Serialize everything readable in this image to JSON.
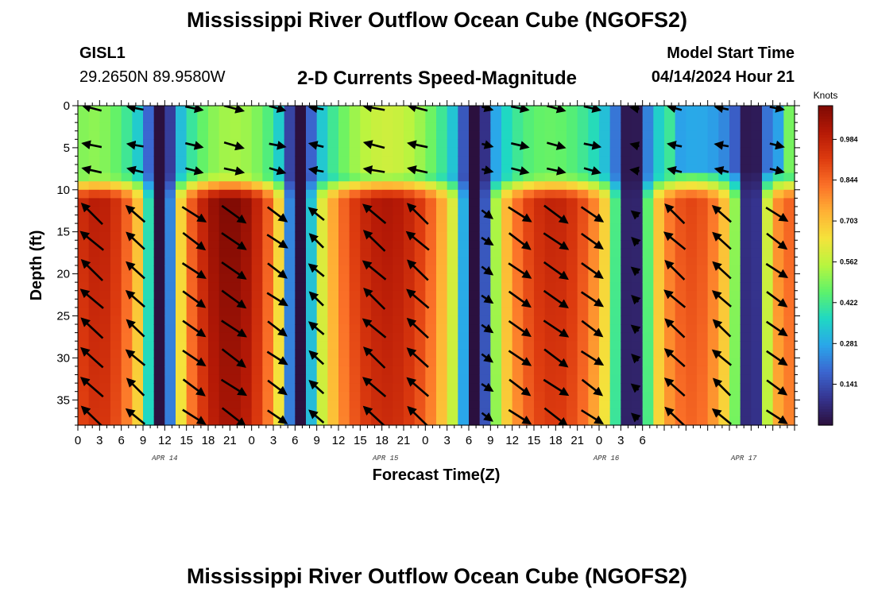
{
  "header": {
    "title": "Mississippi River Outflow Ocean Cube (NGOFS2)",
    "station_id": "GISL1",
    "station_coords": "29.2650N  89.9580W",
    "subtitle": "2-D Currents Speed-Magnitude",
    "model_start_label": "Model Start Time",
    "model_start_value": "04/14/2024 Hour 21"
  },
  "footer": {
    "title": "Mississippi River Outflow Ocean Cube (NGOFS2)"
  },
  "chart_data": {
    "type": "heatmap",
    "xlabel": "Forecast Time(Z)",
    "ylabel": "Depth (ft)",
    "x_range_hours": [
      0,
      99
    ],
    "y_range_ft": [
      0,
      38
    ],
    "x_tick_labels": [
      "0",
      "3",
      "6",
      "9",
      "12",
      "15",
      "18",
      "21",
      "0",
      "3",
      "6",
      "9",
      "12",
      "15",
      "18",
      "21",
      "0",
      "3",
      "6",
      "9",
      "12",
      "15",
      "18",
      "21",
      "0",
      "3",
      "6"
    ],
    "y_ticks": [
      0,
      5,
      10,
      15,
      20,
      25,
      30,
      35
    ],
    "date_labels": [
      {
        "label": "APR 14",
        "hour": 12
      },
      {
        "label": "APR 15",
        "hour": 42.5
      },
      {
        "label": "APR 16",
        "hour": 73
      },
      {
        "label": "APR 17",
        "hour": 92
      }
    ],
    "colorbar": {
      "title": "Knots",
      "ticks": [
        0.141,
        0.281,
        0.422,
        0.562,
        0.703,
        0.844,
        0.984
      ],
      "tick_labels": [
        "0.141",
        "0.281",
        "0.422",
        "0.562",
        "0.703",
        "0.844",
        "0.984"
      ],
      "range": [
        0.0,
        1.1
      ]
    },
    "slack_hours": [
      11.5,
      30.5,
      55,
      76.5,
      93
    ],
    "cell_hours": 1.5,
    "cell_ft": 1.0,
    "arrow_columns_hours": [
      2,
      8,
      16,
      21.5,
      27.5,
      33,
      41,
      47,
      56.5,
      61,
      66,
      71,
      77,
      82.5,
      89,
      96.5
    ],
    "arrow_rows_ft": [
      0.3,
      4.7,
      7.7,
      12.9,
      16.1,
      19.6,
      23.0,
      26.5,
      30.0,
      33.5,
      37.0
    ],
    "colormap": [
      "#2b0f3c",
      "#35348f",
      "#3b66d0",
      "#2aa6ea",
      "#1fd8c3",
      "#5df26b",
      "#b8f53f",
      "#f4e33b",
      "#ffb235",
      "#fb7128",
      "#dd3b0f",
      "#b51906",
      "#7e0a04"
    ]
  }
}
